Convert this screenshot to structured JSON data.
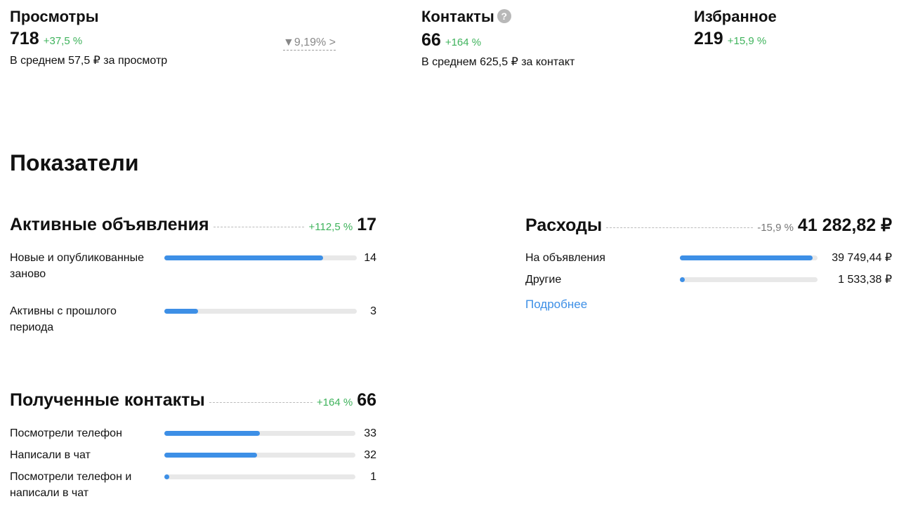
{
  "stats": {
    "views": {
      "title": "Просмотры",
      "value": "718",
      "delta": "+37,5 %",
      "avg": "В среднем 57,5 ₽ за просмотр",
      "funnel": "9,19%"
    },
    "contacts": {
      "title": "Контакты",
      "help": "?",
      "value": "66",
      "delta": "+164 %",
      "avg": "В среднем 625,5 ₽ за контакт"
    },
    "favorites": {
      "title": "Избранное",
      "value": "219",
      "delta": "+15,9 %"
    }
  },
  "heading": "Показатели",
  "active_ads": {
    "title": "Активные объявления",
    "delta": "+112,5 %",
    "total": "17",
    "total_num": 17,
    "rows": [
      {
        "label": "Новые и опубликованные заново",
        "value": "14",
        "num": 14
      },
      {
        "label": "Активны с прошлого периода",
        "value": "3",
        "num": 3
      }
    ]
  },
  "expenses": {
    "title": "Расходы",
    "delta": "-15,9 %",
    "total": "41 282,82 ₽",
    "total_num": 41282.82,
    "rows": [
      {
        "label": "На объявления",
        "value": "39 749,44 ₽",
        "num": 39749.44
      },
      {
        "label": "Другие",
        "value": "1 533,38 ₽",
        "num": 1533.38
      }
    ],
    "more": "Подробнее"
  },
  "received": {
    "title": "Полученные контакты",
    "delta": "+164 %",
    "total": "66",
    "total_num": 66,
    "rows": [
      {
        "label": "Посмотрели телефон",
        "value": "33",
        "num": 33
      },
      {
        "label": "Написали в чат",
        "value": "32",
        "num": 32
      },
      {
        "label": "Посмотрели телефон и написали в чат",
        "value": "1",
        "num": 1
      }
    ]
  },
  "colors": {
    "accent": "#3d8fe6",
    "positive": "#3fb35c",
    "track": "#e8e8e8"
  }
}
